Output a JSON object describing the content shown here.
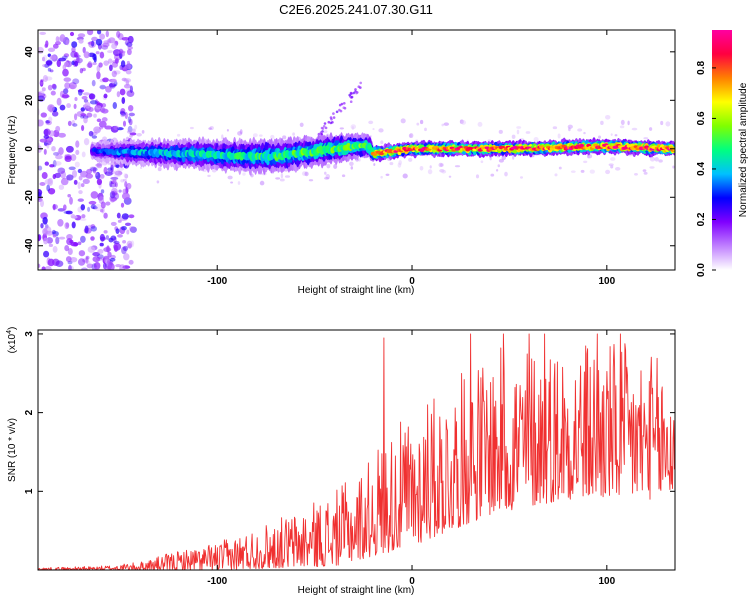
{
  "title": "C2E6.2025.241.07.30.G11",
  "chart_data": [
    {
      "type": "heatmap",
      "xlabel": "Height of straight line (km)",
      "ylabel": "Frequency (Hz)",
      "xlim": [
        -192,
        135
      ],
      "ylim": [
        -50,
        49
      ],
      "xticks": [
        -100,
        0,
        100
      ],
      "yticks": [
        40,
        20,
        0,
        -20,
        -40
      ],
      "xtick_labels": [
        "-100",
        "0",
        "100"
      ],
      "ytick_labels": [
        "40",
        "20",
        "0",
        "-20",
        "-40"
      ],
      "colorbar": {
        "label": "Normalized spectral amplitude",
        "range": [
          0,
          0.95
        ],
        "ticks": [
          0.0,
          0.2,
          0.4,
          0.6,
          0.8
        ],
        "tick_labels": [
          "0.0",
          "0.2",
          "0.4",
          "0.6",
          "0.8"
        ],
        "colors": [
          "#ffffff",
          "#c080ff",
          "#8000ff",
          "#0000ff",
          "#00c0ff",
          "#00ff80",
          "#80ff00",
          "#ffff00",
          "#ff8000",
          "#ff0040",
          "#ff00a0"
        ]
      },
      "band": {
        "centers": [
          [
            -162,
            -1
          ],
          [
            -120,
            -2
          ],
          [
            -90,
            -3
          ],
          [
            -68,
            -3
          ],
          [
            -50,
            -1
          ],
          [
            -30,
            1
          ],
          [
            -22,
            1
          ],
          [
            -20,
            -2
          ],
          [
            0,
            0
          ],
          [
            50,
            0
          ],
          [
            100,
            1
          ],
          [
            135,
            0
          ]
        ],
        "half_widths": [
          [
            -162,
            4
          ],
          [
            -120,
            6
          ],
          [
            -80,
            7
          ],
          [
            -40,
            6
          ],
          [
            -22,
            5
          ],
          [
            -20,
            3
          ],
          [
            135,
            3
          ]
        ],
        "amplitude": [
          [
            -162,
            0.3
          ],
          [
            -140,
            0.4
          ],
          [
            -40,
            0.55
          ],
          [
            -21,
            0.55
          ],
          [
            -19,
            0.85
          ],
          [
            135,
            0.9
          ]
        ],
        "streak": {
          "from": [
            -48,
            6
          ],
          "to": [
            -26,
            26
          ]
        },
        "noise_region": {
          "from": -192,
          "to": -143
        }
      }
    },
    {
      "type": "line",
      "xlabel": "Height of straight line (km)",
      "ylabel": "SNR (10 * v/v)",
      "scale_label": "(x10",
      "scale_exp": "4",
      "xlim": [
        -192,
        135
      ],
      "ylim": [
        0,
        3.05
      ],
      "xticks": [
        -100,
        0,
        100
      ],
      "yticks": [
        1,
        2,
        3
      ],
      "xtick_labels": [
        "-100",
        "0",
        "100"
      ],
      "ytick_labels": [
        "1",
        "2",
        "3"
      ],
      "color": "#f03030",
      "envelope": [
        [
          -192,
          0.03
        ],
        [
          -160,
          0.05
        ],
        [
          -140,
          0.1
        ],
        [
          -120,
          0.25
        ],
        [
          -100,
          0.35
        ],
        [
          -80,
          0.55
        ],
        [
          -60,
          0.75
        ],
        [
          -40,
          1.0
        ],
        [
          -25,
          1.3
        ],
        [
          -15,
          1.7
        ],
        [
          0,
          2.0
        ],
        [
          20,
          2.4
        ],
        [
          40,
          2.8
        ],
        [
          60,
          2.9
        ],
        [
          80,
          2.95
        ],
        [
          100,
          2.95
        ],
        [
          120,
          2.8
        ],
        [
          135,
          2.6
        ]
      ],
      "base": [
        [
          -192,
          0.0
        ],
        [
          -100,
          0.0
        ],
        [
          -40,
          0.05
        ],
        [
          0,
          0.3
        ],
        [
          40,
          0.7
        ],
        [
          80,
          0.9
        ],
        [
          135,
          0.9
        ]
      ],
      "peaks": [
        [
          -14.5,
          2.95
        ],
        [
          8,
          2.1
        ],
        [
          30,
          3.0
        ],
        [
          47,
          3.0
        ],
        [
          60,
          3.0
        ],
        [
          68,
          3.0
        ],
        [
          95,
          3.0
        ],
        [
          107,
          3.0
        ]
      ]
    }
  ]
}
